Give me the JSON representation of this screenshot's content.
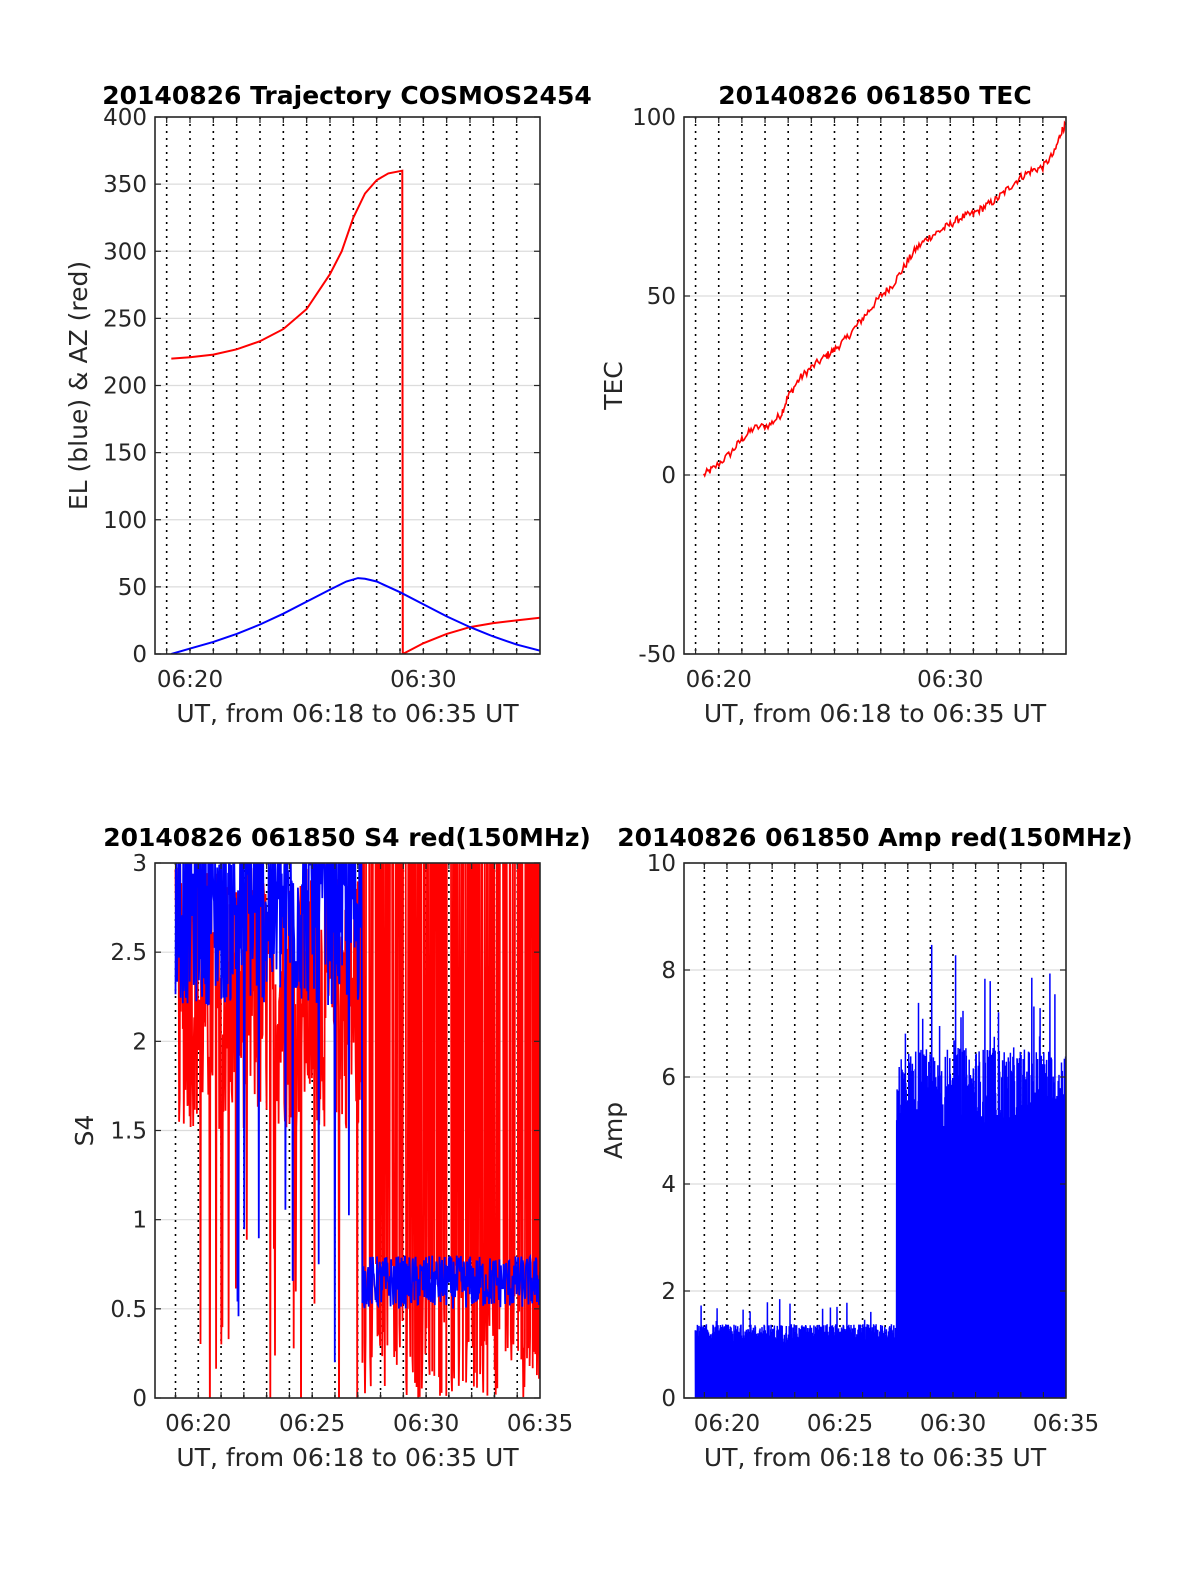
{
  "figure": {
    "background": "#ffffff"
  },
  "chart_data": [
    {
      "id": "trajectory",
      "type": "line",
      "title": "20140826 Trajectory COSMOS2454",
      "xlabel": "UT, from 06:18 to 06:35 UT",
      "ylabel": "EL (blue) & AZ (red)",
      "x_unit": "minutes of hour 06 UT",
      "xlim": [
        18.5,
        35
      ],
      "ylim": [
        0,
        400
      ],
      "yticks": [
        0,
        50,
        100,
        150,
        200,
        250,
        300,
        350,
        400
      ],
      "ytick_labels": [
        "0",
        "50",
        "100",
        "150",
        "200",
        "250",
        "300",
        "350",
        "400"
      ],
      "xticks": [
        20,
        30
      ],
      "xtick_labels": [
        "06:20",
        "06:30"
      ],
      "grid_minutes": [
        19,
        20,
        21,
        22,
        23,
        24,
        25,
        26,
        27,
        28,
        29,
        30,
        31,
        32,
        33,
        34
      ],
      "grid": true,
      "series": [
        {
          "color": "#ff0000",
          "points": [
            [
              19.2,
              220
            ],
            [
              20,
              221
            ],
            [
              21,
              223
            ],
            [
              22,
              227
            ],
            [
              23,
              233
            ],
            [
              24,
              242
            ],
            [
              25,
              257
            ],
            [
              26,
              283
            ],
            [
              26.5,
              300
            ],
            [
              27,
              325
            ],
            [
              27.5,
              343
            ],
            [
              28,
              353
            ],
            [
              28.5,
              358
            ],
            [
              29.1,
              360
            ],
            [
              29.12,
              0
            ],
            [
              30,
              8
            ],
            [
              31,
              15
            ],
            [
              32,
              20
            ],
            [
              33,
              23
            ],
            [
              34,
              25
            ],
            [
              35,
              27
            ]
          ]
        },
        {
          "color": "#0000ff",
          "points": [
            [
              19.2,
              0
            ],
            [
              20,
              4
            ],
            [
              21,
              9
            ],
            [
              22,
              15
            ],
            [
              23,
              22
            ],
            [
              24,
              30
            ],
            [
              25,
              39
            ],
            [
              26,
              48
            ],
            [
              26.7,
              54
            ],
            [
              27.2,
              56.5
            ],
            [
              27.5,
              56
            ],
            [
              28,
              54
            ],
            [
              29,
              46
            ],
            [
              30,
              37
            ],
            [
              31,
              28
            ],
            [
              32,
              20
            ],
            [
              33,
              13
            ],
            [
              34,
              7
            ],
            [
              35,
              2.5
            ]
          ]
        }
      ]
    },
    {
      "id": "tec",
      "type": "line",
      "title": "20140826 061850 TEC",
      "xlabel": "UT, from 06:18 to 06:35 UT",
      "ylabel": "TEC",
      "x_unit": "minutes of hour 06 UT",
      "xlim": [
        18.5,
        35
      ],
      "ylim": [
        -50,
        100
      ],
      "yticks": [
        -50,
        0,
        50,
        100
      ],
      "ytick_labels": [
        "-50",
        "0",
        "50",
        "100"
      ],
      "xticks": [
        20,
        30
      ],
      "xtick_labels": [
        "06:20",
        "06:30"
      ],
      "grid_minutes": [
        19,
        20,
        21,
        22,
        23,
        24,
        25,
        26,
        27,
        28,
        29,
        30,
        31,
        32,
        33,
        34
      ],
      "grid": true,
      "series": [
        {
          "color": "#ff0000",
          "points": [
            [
              19.35,
              0
            ],
            [
              19.8,
              2
            ],
            [
              20.5,
              6
            ],
            [
              21,
              10
            ],
            [
              21.5,
              13
            ],
            [
              22.2,
              14
            ],
            [
              22.7,
              17
            ],
            [
              23,
              22
            ],
            [
              23.5,
              27
            ],
            [
              24,
              30
            ],
            [
              24.6,
              33
            ],
            [
              25,
              35
            ],
            [
              25.5,
              38
            ],
            [
              26,
              42
            ],
            [
              26.5,
              46
            ],
            [
              27,
              50
            ],
            [
              27.5,
              53
            ],
            [
              28,
              58
            ],
            [
              28.5,
              63
            ],
            [
              29,
              66
            ],
            [
              29.5,
              68
            ],
            [
              30,
              70
            ],
            [
              30.5,
              72
            ],
            [
              31,
              73
            ],
            [
              31.5,
              75
            ],
            [
              32,
              77
            ],
            [
              32.5,
              80
            ],
            [
              33,
              83
            ],
            [
              33.5,
              85
            ],
            [
              34,
              86
            ],
            [
              34.5,
              90
            ],
            [
              34.8,
              96
            ],
            [
              35,
              98
            ]
          ]
        }
      ]
    },
    {
      "id": "s4",
      "type": "line",
      "title": "20140826 061850 S4 red(150MHz)",
      "xlabel": "UT, from 06:18 to 06:35 UT",
      "ylabel": "S4",
      "x_unit": "minutes of hour 06 UT",
      "xlim": [
        18.1,
        35
      ],
      "ylim": [
        0,
        3
      ],
      "yticks": [
        0,
        0.5,
        1,
        1.5,
        2,
        2.5,
        3
      ],
      "ytick_labels": [
        "0",
        "0.5",
        "1",
        "1.5",
        "2",
        "2.5",
        "3"
      ],
      "xticks": [
        20,
        25,
        30,
        35
      ],
      "xtick_labels": [
        "06:20",
        "06:25",
        "06:30",
        "06:35"
      ],
      "grid_minutes": [
        19,
        20,
        21,
        22,
        23,
        24,
        25,
        26,
        27,
        28,
        29,
        30,
        31,
        32,
        33,
        34
      ],
      "grid": true,
      "series": [
        {
          "color": "#ff0000",
          "description": "noisy, dense between 1.5 and 3 before 06:27, spikes from 0 to 3 after",
          "x_range": [
            19,
            35
          ],
          "before_0627_band": [
            1.5,
            3
          ],
          "after_0627_band": [
            0,
            3
          ]
        },
        {
          "color": "#0000ff",
          "description": "noisy, dense between 1.9 and 3 before 06:27, about 0.5-0.8 after",
          "x_range": [
            19,
            35
          ],
          "before_0627_band": [
            1.9,
            3
          ],
          "after_0627_band": [
            0.5,
            0.8
          ]
        }
      ]
    },
    {
      "id": "amp",
      "type": "line",
      "title": "20140826 061850 Amp red(150MHz)",
      "xlabel": "UT, from 06:18 to 06:35 UT",
      "ylabel": "Amp",
      "x_unit": "minutes of hour 06 UT",
      "xlim": [
        18.1,
        35
      ],
      "ylim": [
        0,
        10
      ],
      "yticks": [
        0,
        2,
        4,
        6,
        8,
        10
      ],
      "ytick_labels": [
        "0",
        "2",
        "4",
        "6",
        "8",
        "10"
      ],
      "xticks": [
        20,
        25,
        30,
        35
      ],
      "xtick_labels": [
        "06:20",
        "06:25",
        "06:30",
        "06:35"
      ],
      "grid_minutes": [
        19,
        20,
        21,
        22,
        23,
        24,
        25,
        26,
        27,
        28,
        29,
        30,
        31,
        32,
        33,
        34
      ],
      "grid": true,
      "series": [
        {
          "color": "#0000ff",
          "description": "filled noisy amplitude, about 0-1.2 before 06:27.5, about 0-5.7 after, peaks near 8.6",
          "x_range": [
            18.6,
            35
          ],
          "low_level_until": 27.5,
          "low_peak": 1.2,
          "high_peak": 5.7,
          "max_spike": 8.6
        }
      ]
    }
  ]
}
